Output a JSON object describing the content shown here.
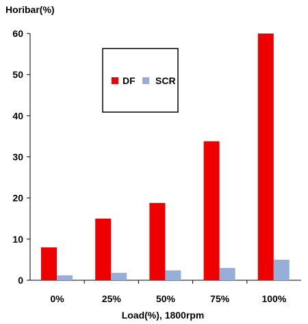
{
  "chart_data": {
    "type": "bar",
    "ylabel": "Horibar(%)",
    "xlabel": "Load(%), 1800rpm",
    "categories": [
      "0%",
      "25%",
      "50%",
      "75%",
      "100%"
    ],
    "series": [
      {
        "name": "DF",
        "color": "#ee0000",
        "values": [
          8,
          15,
          18.8,
          33.8,
          60
        ]
      },
      {
        "name": "SCR",
        "color": "#97aed6",
        "values": [
          1.2,
          1.8,
          2.4,
          3.0,
          5.0
        ]
      }
    ],
    "ylim": [
      0,
      60
    ],
    "yticks": [
      0,
      10,
      20,
      30,
      40,
      50,
      60
    ],
    "grid": false,
    "legend_position": "upper-center"
  }
}
